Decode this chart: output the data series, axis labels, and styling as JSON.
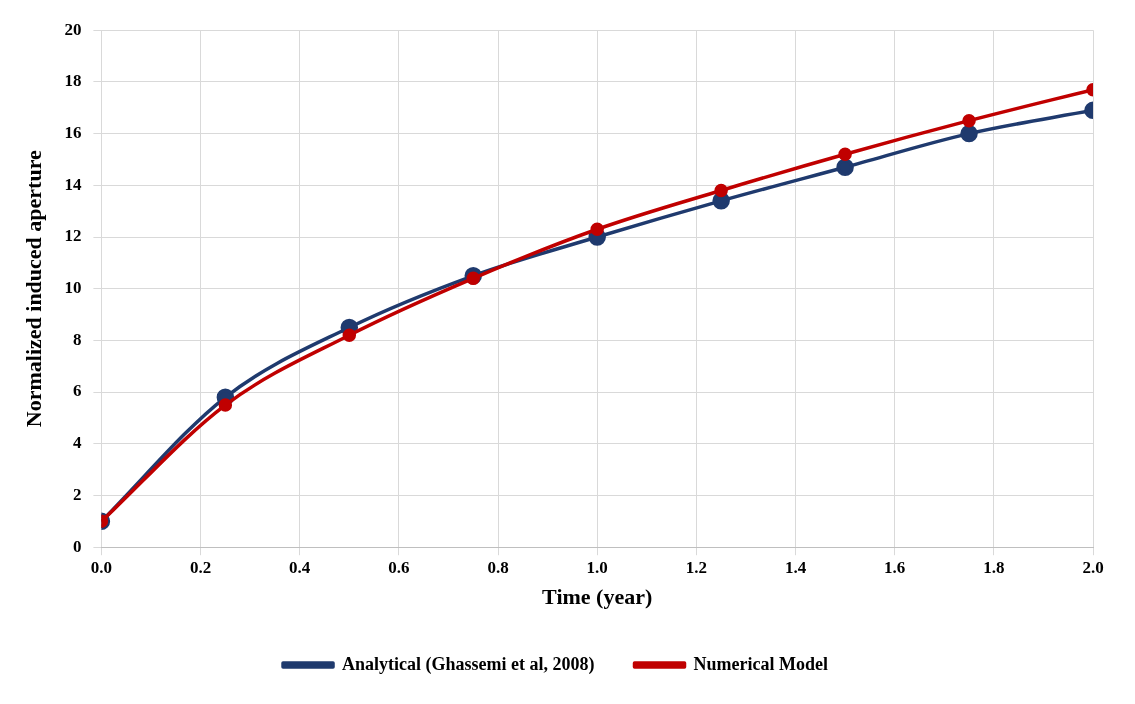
{
  "chart_data": {
    "type": "line",
    "xlabel": "Time (year)",
    "ylabel": "Normalized induced aperture",
    "x": [
      0,
      0.25,
      0.5,
      0.75,
      1.0,
      1.25,
      1.5,
      1.75,
      2.0
    ],
    "series": [
      {
        "name": "Analytical (Ghassemi et al, 2008)",
        "color": "#1f3a6e",
        "values": [
          1,
          5.8,
          8.5,
          10.5,
          12.0,
          13.4,
          14.7,
          16.0,
          16.9
        ]
      },
      {
        "name": "Numerical Model",
        "color": "#c00000",
        "values": [
          1,
          5.5,
          8.2,
          10.4,
          12.3,
          13.8,
          15.2,
          16.5,
          17.7
        ]
      }
    ],
    "xlim": [
      0,
      2
    ],
    "xticks": [
      {
        "value": 0,
        "label": "0.0"
      },
      0.2,
      0.4,
      0.6,
      0.8,
      {
        "value": 1,
        "label": "1.0"
      },
      1.2,
      1.4,
      1.6,
      1.8,
      {
        "value": 2,
        "label": "2.0"
      }
    ],
    "ylim": [
      0,
      20
    ],
    "yticks": [
      0,
      2,
      4,
      6,
      8,
      10,
      12,
      14,
      16,
      18,
      20
    ],
    "grid": true,
    "legend": "bottom",
    "marker": "circle",
    "line_style": "solid"
  }
}
